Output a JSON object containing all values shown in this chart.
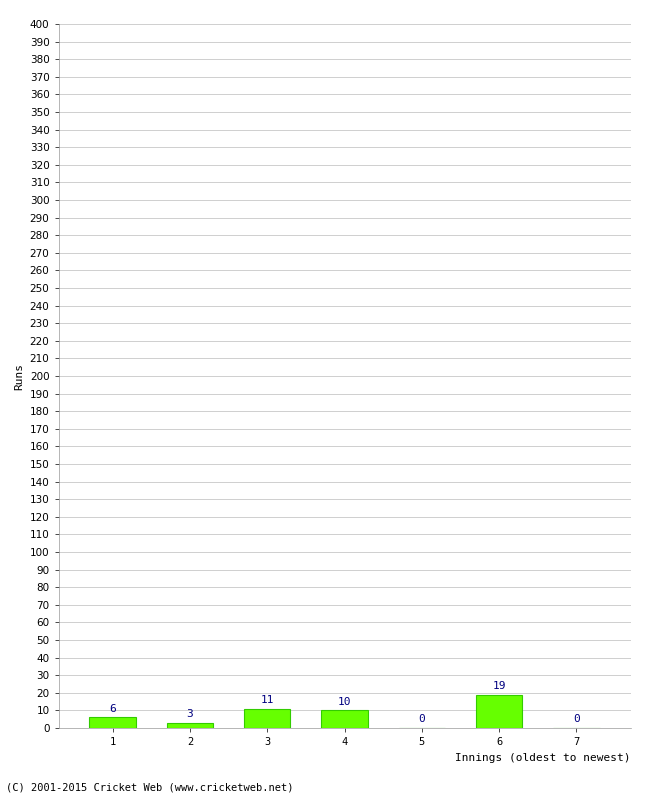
{
  "categories": [
    "1",
    "2",
    "3",
    "4",
    "5",
    "6",
    "7"
  ],
  "values": [
    6,
    3,
    11,
    10,
    0,
    19,
    0
  ],
  "bar_color": "#66ff00",
  "bar_edge_color": "#33cc00",
  "ylabel": "Runs",
  "xlabel": "Innings (oldest to newest)",
  "ylim": [
    0,
    400
  ],
  "ytick_step": 10,
  "label_color": "#000080",
  "footer": "(C) 2001-2015 Cricket Web (www.cricketweb.net)",
  "background_color": "#ffffff",
  "grid_color": "#c8c8c8",
  "tick_fontsize": 7.5,
  "label_fontsize": 8,
  "footer_fontsize": 7.5
}
